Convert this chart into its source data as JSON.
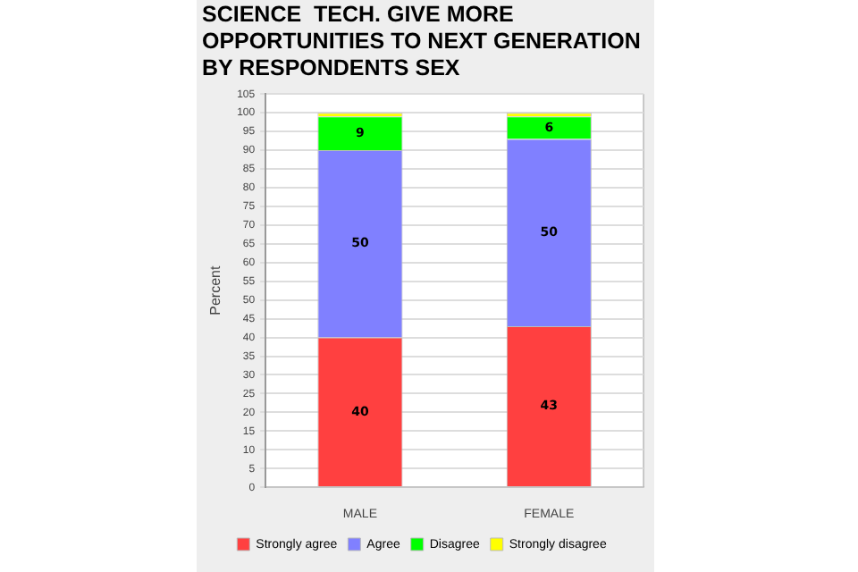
{
  "chart_data": {
    "type": "bar",
    "title": "SCIENCE  TECH. GIVE MORE OPPORTUNITIES TO NEXT GENERATION BY RESPONDENTS SEX",
    "ylabel": "Percent",
    "categories": [
      "MALE",
      "FEMALE"
    ],
    "stacked": true,
    "series": [
      {
        "name": "Strongly agree",
        "color": "#ff4040",
        "values": [
          40,
          43
        ],
        "value_labels": [
          "40",
          "43"
        ]
      },
      {
        "name": "Agree",
        "color": "#8080ff",
        "values": [
          50,
          50
        ],
        "value_labels": [
          "50",
          "50"
        ]
      },
      {
        "name": "Disagree",
        "color": "#00ff00",
        "values": [
          9,
          6
        ],
        "value_labels": [
          "9",
          "6"
        ]
      },
      {
        "name": "Strongly disagree",
        "color": "#ffff00",
        "values": [
          1,
          1
        ],
        "value_labels": [
          null,
          null
        ]
      }
    ],
    "ylim": [
      0,
      105
    ],
    "yticks": [
      0,
      5,
      10,
      15,
      20,
      25,
      30,
      35,
      40,
      45,
      50,
      55,
      60,
      65,
      70,
      75,
      80,
      85,
      90,
      95,
      100,
      105
    ],
    "grid": "y",
    "legend": "bottom"
  }
}
